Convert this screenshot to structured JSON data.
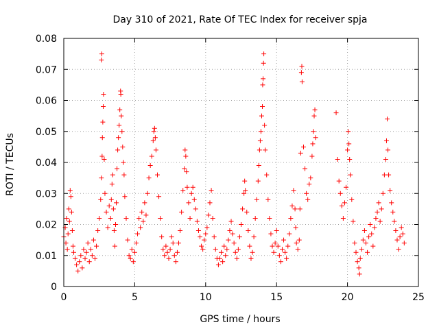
{
  "chart_data": {
    "type": "scatter",
    "title": "Day 310 of 2021, Rate Of TEC Index for receiver spja",
    "xlabel": "GPS time / hours",
    "ylabel": "ROTI / TECUs",
    "xlim": [
      0,
      25
    ],
    "ylim": [
      0,
      0.08
    ],
    "xticks": [
      0,
      5,
      10,
      15,
      20,
      25
    ],
    "xtick_labels": [
      "0",
      "5",
      "10",
      "15",
      "20",
      "25"
    ],
    "yticks": [
      0,
      0.01,
      0.02,
      0.03,
      0.04,
      0.05,
      0.06,
      0.07,
      0.08
    ],
    "ytick_labels": [
      "0",
      "0.01",
      "0.02",
      "0.03",
      "0.04",
      "0.05",
      "0.06",
      "0.07",
      "0.08"
    ],
    "grid": true,
    "marker": "+",
    "series": [
      {
        "name": "ROTI",
        "color": "#ff0000",
        "points": [
          [
            0.0,
            0.016
          ],
          [
            0.1,
            0.019
          ],
          [
            0.15,
            0.014
          ],
          [
            0.2,
            0.022
          ],
          [
            0.25,
            0.012
          ],
          [
            0.3,
            0.017
          ],
          [
            0.35,
            0.025
          ],
          [
            0.4,
            0.021
          ],
          [
            0.45,
            0.031
          ],
          [
            0.5,
            0.029
          ],
          [
            0.55,
            0.024
          ],
          [
            0.6,
            0.018
          ],
          [
            0.65,
            0.013
          ],
          [
            0.7,
            0.011
          ],
          [
            0.8,
            0.009
          ],
          [
            0.9,
            0.007
          ],
          [
            1.0,
            0.005
          ],
          [
            1.1,
            0.008
          ],
          [
            1.2,
            0.01
          ],
          [
            1.3,
            0.006
          ],
          [
            1.4,
            0.012
          ],
          [
            1.5,
            0.009
          ],
          [
            1.6,
            0.011
          ],
          [
            1.7,
            0.014
          ],
          [
            1.8,
            0.008
          ],
          [
            1.9,
            0.012
          ],
          [
            2.0,
            0.01
          ],
          [
            2.1,
            0.015
          ],
          [
            2.2,
            0.009
          ],
          [
            2.3,
            0.013
          ],
          [
            2.4,
            0.018
          ],
          [
            2.5,
            0.022
          ],
          [
            2.6,
            0.028
          ],
          [
            2.65,
            0.035
          ],
          [
            2.7,
            0.042
          ],
          [
            2.72,
            0.048
          ],
          [
            2.75,
            0.053
          ],
          [
            2.78,
            0.058
          ],
          [
            2.8,
            0.062
          ],
          [
            2.65,
            0.073
          ],
          [
            2.68,
            0.075
          ],
          [
            2.85,
            0.041
          ],
          [
            2.9,
            0.03
          ],
          [
            3.0,
            0.024
          ],
          [
            3.1,
            0.019
          ],
          [
            3.2,
            0.026
          ],
          [
            3.3,
            0.022
          ],
          [
            3.35,
            0.028
          ],
          [
            3.4,
            0.033
          ],
          [
            3.45,
            0.036
          ],
          [
            3.5,
            0.025
          ],
          [
            3.55,
            0.018
          ],
          [
            3.6,
            0.013
          ],
          [
            3.65,
            0.02
          ],
          [
            3.7,
            0.027
          ],
          [
            3.75,
            0.038
          ],
          [
            3.8,
            0.044
          ],
          [
            3.85,
            0.048
          ],
          [
            3.9,
            0.052
          ],
          [
            3.95,
            0.057
          ],
          [
            4.0,
            0.063
          ],
          [
            4.02,
            0.062
          ],
          [
            4.05,
            0.055
          ],
          [
            4.1,
            0.05
          ],
          [
            4.15,
            0.045
          ],
          [
            4.2,
            0.04
          ],
          [
            4.25,
            0.036
          ],
          [
            4.3,
            0.029
          ],
          [
            4.4,
            0.022
          ],
          [
            4.5,
            0.015
          ],
          [
            4.6,
            0.01
          ],
          [
            4.7,
            0.009
          ],
          [
            4.8,
            0.012
          ],
          [
            4.9,
            0.008
          ],
          [
            5.0,
            0.011
          ],
          [
            5.1,
            0.014
          ],
          [
            5.2,
            0.017
          ],
          [
            5.3,
            0.022
          ],
          [
            5.4,
            0.019
          ],
          [
            5.5,
            0.024
          ],
          [
            5.6,
            0.021
          ],
          [
            5.7,
            0.027
          ],
          [
            5.8,
            0.023
          ],
          [
            5.9,
            0.03
          ],
          [
            6.0,
            0.035
          ],
          [
            6.1,
            0.039
          ],
          [
            6.2,
            0.042
          ],
          [
            6.3,
            0.047
          ],
          [
            6.35,
            0.05
          ],
          [
            6.4,
            0.051
          ],
          [
            6.45,
            0.048
          ],
          [
            6.5,
            0.044
          ],
          [
            6.6,
            0.036
          ],
          [
            6.7,
            0.029
          ],
          [
            6.8,
            0.022
          ],
          [
            6.9,
            0.016
          ],
          [
            7.0,
            0.012
          ],
          [
            7.1,
            0.01
          ],
          [
            7.2,
            0.013
          ],
          [
            7.3,
            0.011
          ],
          [
            7.4,
            0.009
          ],
          [
            7.5,
            0.012
          ],
          [
            7.6,
            0.016
          ],
          [
            7.7,
            0.014
          ],
          [
            7.8,
            0.01
          ],
          [
            7.9,
            0.008
          ],
          [
            8.0,
            0.011
          ],
          [
            8.1,
            0.014
          ],
          [
            8.2,
            0.018
          ],
          [
            8.3,
            0.024
          ],
          [
            8.4,
            0.031
          ],
          [
            8.5,
            0.038
          ],
          [
            8.55,
            0.044
          ],
          [
            8.6,
            0.042
          ],
          [
            8.65,
            0.037
          ],
          [
            8.7,
            0.032
          ],
          [
            8.8,
            0.027
          ],
          [
            8.9,
            0.022
          ],
          [
            9.0,
            0.03
          ],
          [
            9.1,
            0.032
          ],
          [
            9.2,
            0.028
          ],
          [
            9.3,
            0.025
          ],
          [
            9.4,
            0.021
          ],
          [
            9.5,
            0.018
          ],
          [
            9.6,
            0.016
          ],
          [
            9.7,
            0.013
          ],
          [
            9.8,
            0.012
          ],
          [
            9.9,
            0.015
          ],
          [
            10.0,
            0.017
          ],
          [
            10.1,
            0.019
          ],
          [
            10.2,
            0.023
          ],
          [
            10.3,
            0.027
          ],
          [
            10.4,
            0.031
          ],
          [
            10.5,
            0.022
          ],
          [
            10.6,
            0.016
          ],
          [
            10.7,
            0.012
          ],
          [
            10.8,
            0.009
          ],
          [
            10.9,
            0.007
          ],
          [
            11.0,
            0.009
          ],
          [
            11.1,
            0.011
          ],
          [
            11.2,
            0.008
          ],
          [
            11.3,
            0.013
          ],
          [
            11.4,
            0.01
          ],
          [
            11.5,
            0.012
          ],
          [
            11.6,
            0.015
          ],
          [
            11.7,
            0.018
          ],
          [
            11.8,
            0.021
          ],
          [
            11.9,
            0.017
          ],
          [
            12.0,
            0.014
          ],
          [
            12.1,
            0.011
          ],
          [
            12.2,
            0.009
          ],
          [
            12.3,
            0.012
          ],
          [
            12.4,
            0.016
          ],
          [
            12.5,
            0.02
          ],
          [
            12.6,
            0.025
          ],
          [
            12.7,
            0.03
          ],
          [
            12.75,
            0.034
          ],
          [
            12.8,
            0.031
          ],
          [
            12.9,
            0.024
          ],
          [
            13.0,
            0.018
          ],
          [
            13.1,
            0.013
          ],
          [
            13.2,
            0.009
          ],
          [
            13.3,
            0.011
          ],
          [
            13.4,
            0.016
          ],
          [
            13.5,
            0.022
          ],
          [
            13.6,
            0.028
          ],
          [
            13.7,
            0.034
          ],
          [
            13.75,
            0.039
          ],
          [
            13.8,
            0.044
          ],
          [
            13.85,
            0.047
          ],
          [
            13.9,
            0.05
          ],
          [
            13.95,
            0.055
          ],
          [
            14.0,
            0.058
          ],
          [
            14.02,
            0.065
          ],
          [
            14.05,
            0.067
          ],
          [
            14.08,
            0.072
          ],
          [
            14.1,
            0.075
          ],
          [
            14.15,
            0.052
          ],
          [
            14.2,
            0.044
          ],
          [
            14.3,
            0.036
          ],
          [
            14.4,
            0.028
          ],
          [
            14.5,
            0.022
          ],
          [
            14.6,
            0.017
          ],
          [
            14.7,
            0.013
          ],
          [
            14.8,
            0.011
          ],
          [
            14.9,
            0.014
          ],
          [
            15.0,
            0.018
          ],
          [
            15.1,
            0.013
          ],
          [
            15.2,
            0.01
          ],
          [
            15.3,
            0.008
          ],
          [
            15.4,
            0.012
          ],
          [
            15.5,
            0.015
          ],
          [
            15.6,
            0.011
          ],
          [
            15.7,
            0.009
          ],
          [
            15.8,
            0.013
          ],
          [
            15.9,
            0.017
          ],
          [
            16.0,
            0.022
          ],
          [
            16.1,
            0.026
          ],
          [
            16.2,
            0.031
          ],
          [
            16.3,
            0.025
          ],
          [
            16.35,
            0.019
          ],
          [
            16.4,
            0.014
          ],
          [
            16.5,
            0.012
          ],
          [
            16.6,
            0.015
          ],
          [
            16.65,
            0.025
          ],
          [
            16.7,
            0.043
          ],
          [
            16.75,
            0.069
          ],
          [
            16.78,
            0.071
          ],
          [
            16.8,
            0.066
          ],
          [
            16.9,
            0.045
          ],
          [
            17.0,
            0.038
          ],
          [
            17.1,
            0.03
          ],
          [
            17.2,
            0.028
          ],
          [
            17.3,
            0.033
          ],
          [
            17.4,
            0.035
          ],
          [
            17.5,
            0.042
          ],
          [
            17.55,
            0.046
          ],
          [
            17.6,
            0.05
          ],
          [
            17.65,
            0.055
          ],
          [
            17.7,
            0.057
          ],
          [
            17.75,
            0.048
          ],
          [
            19.2,
            0.056
          ],
          [
            19.3,
            0.041
          ],
          [
            19.4,
            0.034
          ],
          [
            19.5,
            0.03
          ],
          [
            19.6,
            0.026
          ],
          [
            19.7,
            0.022
          ],
          [
            19.8,
            0.027
          ],
          [
            19.9,
            0.032
          ],
          [
            20.0,
            0.044
          ],
          [
            20.05,
            0.05
          ],
          [
            20.1,
            0.046
          ],
          [
            20.15,
            0.041
          ],
          [
            20.2,
            0.036
          ],
          [
            20.3,
            0.028
          ],
          [
            20.4,
            0.021
          ],
          [
            20.5,
            0.014
          ],
          [
            20.6,
            0.011
          ],
          [
            20.7,
            0.008
          ],
          [
            20.8,
            0.006
          ],
          [
            20.85,
            0.004
          ],
          [
            20.9,
            0.009
          ],
          [
            21.0,
            0.012
          ],
          [
            21.1,
            0.015
          ],
          [
            21.2,
            0.018
          ],
          [
            21.3,
            0.014
          ],
          [
            21.4,
            0.011
          ],
          [
            21.5,
            0.016
          ],
          [
            21.6,
            0.02
          ],
          [
            21.7,
            0.017
          ],
          [
            21.8,
            0.013
          ],
          [
            21.9,
            0.019
          ],
          [
            22.0,
            0.022
          ],
          [
            22.1,
            0.024
          ],
          [
            22.2,
            0.027
          ],
          [
            22.3,
            0.021
          ],
          [
            22.4,
            0.025
          ],
          [
            22.5,
            0.03
          ],
          [
            22.6,
            0.036
          ],
          [
            22.7,
            0.041
          ],
          [
            22.75,
            0.047
          ],
          [
            22.8,
            0.054
          ],
          [
            22.85,
            0.044
          ],
          [
            22.9,
            0.036
          ],
          [
            23.0,
            0.031
          ],
          [
            23.1,
            0.027
          ],
          [
            23.2,
            0.024
          ],
          [
            23.3,
            0.021
          ],
          [
            23.4,
            0.018
          ],
          [
            23.5,
            0.015
          ],
          [
            23.6,
            0.012
          ],
          [
            23.7,
            0.016
          ],
          [
            23.8,
            0.019
          ],
          [
            23.9,
            0.017
          ],
          [
            24.0,
            0.014
          ]
        ]
      }
    ]
  }
}
